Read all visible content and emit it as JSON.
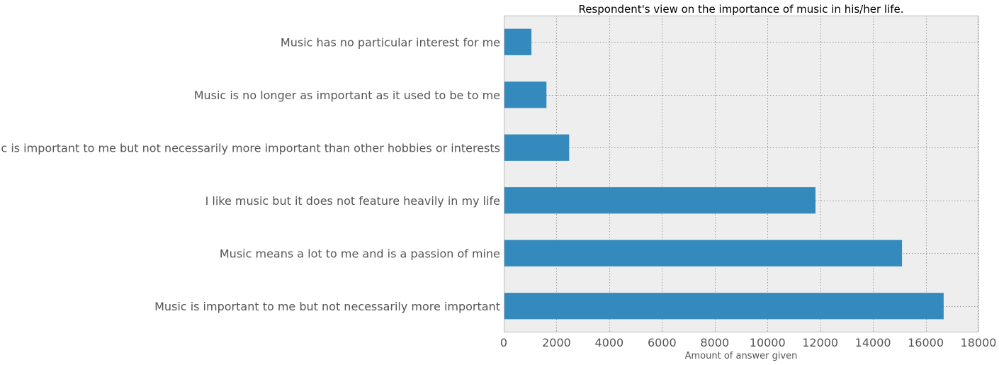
{
  "colors": {
    "bar": "#348abd",
    "plot_background": "#eeeeee",
    "grid": "#999999",
    "frame": "#bcbcbc",
    "text": "#555555"
  },
  "chart_data": {
    "type": "bar",
    "orientation": "horizontal",
    "title": "Respondent's view on the importance of music in his/her life.",
    "xlabel": "Amount of answer given",
    "ylabel": "",
    "xlim": [
      0,
      18000
    ],
    "xticks": [
      0,
      2000,
      4000,
      6000,
      8000,
      10000,
      12000,
      14000,
      16000,
      18000
    ],
    "grid": true,
    "categories": [
      "Music has no particular interest for me",
      "Music is no longer as important as it used to be to me",
      "Music is important to me but not necessarily more important than other hobbies or interests",
      "I like music but it does not feature heavily in my life",
      "Music means a lot to me and is a passion of mine",
      "Music is important to me but not necessarily more important"
    ],
    "values": [
      1050,
      1620,
      2480,
      11820,
      15100,
      16680
    ]
  }
}
